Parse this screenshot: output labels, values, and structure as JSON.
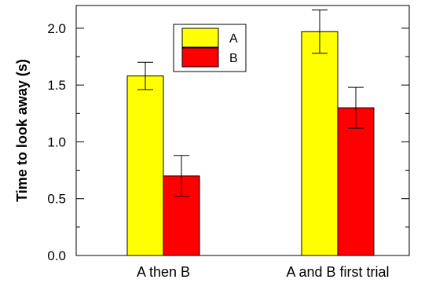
{
  "chart_data": {
    "type": "bar",
    "categories": [
      "A then B",
      "A and B first trial"
    ],
    "series": [
      {
        "name": "A",
        "color": "#ffff00",
        "values": [
          1.58,
          1.97
        ],
        "errors": [
          0.12,
          0.19
        ]
      },
      {
        "name": "B",
        "color": "#ff0000",
        "values": [
          0.7,
          1.3
        ],
        "errors": [
          0.18,
          0.18
        ]
      }
    ],
    "title": "",
    "xlabel": "",
    "ylabel": "Time to look away (s)",
    "ylim": [
      0,
      2.2
    ],
    "yticks": [
      "0.0",
      "0.5",
      "1.0",
      "1.5",
      "2.0"
    ],
    "grid": false,
    "legend_position": "top-left"
  }
}
